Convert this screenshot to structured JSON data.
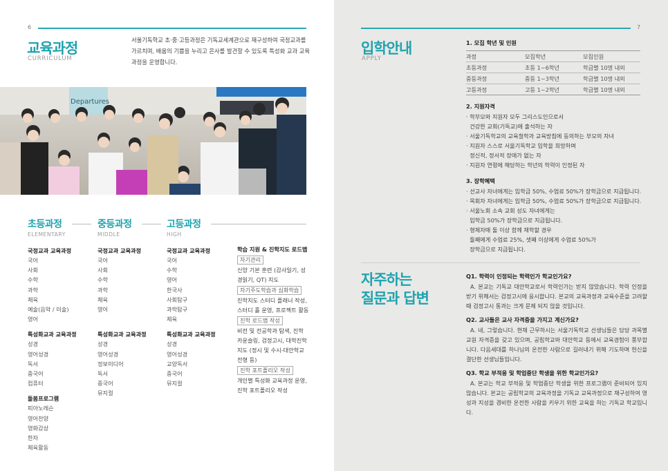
{
  "left_page": {
    "page_number": "6",
    "title": "교육과정",
    "subtitle": "CURRICULUM",
    "intro": "서울기독학교 초·중·고등과정은 기독교세계관으로 재구성하여 국정교과를 가르치며, 배움의 기쁨을 누리고 은사를 발견할 수 있도록 특성화 교과 교육과정을 운영합니다.",
    "photo_alt": "Departures",
    "columns": [
      {
        "title": "초등과정",
        "subtitle": "ELEMENTARY",
        "groups": [
          {
            "heading": "국정교과 교육과정",
            "items": [
              "국어",
              "사회",
              "수학",
              "과학",
              "체육",
              "예술(음악 / 미술)",
              "영어"
            ]
          },
          {
            "heading": "특성화교과 교육과정",
            "items": [
              "성경",
              "영어성경",
              "독서",
              "중국어",
              "컴퓨터"
            ]
          },
          {
            "heading": "돌봄프로그램",
            "items": [
              "피아노레슨",
              "영어찬양",
              "영화감상",
              "한자",
              "체육활동"
            ]
          }
        ]
      },
      {
        "title": "중등과정",
        "subtitle": "MIDDLE",
        "groups": [
          {
            "heading": "국정교과 교육과정",
            "items": [
              "국어",
              "사회",
              "수학",
              "과학",
              "체육",
              "영어"
            ]
          },
          {
            "heading": "특성화교과 교육과정",
            "items": [
              "성경",
              "영어성경",
              "정보미디어",
              "독서",
              "중국어",
              "뮤지컬"
            ]
          }
        ]
      },
      {
        "title": "고등과정",
        "subtitle": "HIGH",
        "groups": [
          {
            "heading": "국정교과 교육과정",
            "items": [
              "국어",
              "수학",
              "영어",
              "한국사",
              "사회탐구",
              "과학탐구",
              "체육"
            ]
          },
          {
            "heading": "특성화교과 교육과정",
            "items": [
              "성경",
              "영어성경",
              "교양독서",
              "중국어",
              "뮤지컬"
            ]
          }
        ]
      }
    ],
    "roadmap": {
      "heading": "학습 지원 & 진학지도 로드맵",
      "blocks": [
        {
          "tag": "자기관리",
          "lines": [
            "신앙 기본 훈련 (감사일기, 성",
            "경읽기, QT) 지도"
          ]
        },
        {
          "tag": "자기주도학습과 심화학습",
          "lines": [
            "진학지도 스터디 플래너 작성,",
            "스터디 홀 운영, 프로젝트 활동"
          ]
        },
        {
          "tag": "진학 로드맵 작성",
          "lines": [
            "비전 및 전공학과 탐색, 진학",
            "카운슬링, 검정고시, 대학진학",
            "지도 (정시 및 수시-대안학교",
            "전형 등)"
          ]
        },
        {
          "tag": "진학 포트폴리오 작성",
          "lines": [
            "개인별 특성화 교육과정 운영,",
            "진학 포트폴리오 작성"
          ]
        }
      ]
    }
  },
  "right_page": {
    "page_number": "7",
    "title": "입학안내",
    "subtitle": "APPLY",
    "section1": {
      "heading": "1. 모집 학년 및 인원",
      "headers": [
        "과정",
        "모집학년",
        "모집인원"
      ],
      "rows": [
        [
          "초등과정",
          "초등 1~6학년",
          "학급별 10명 내외"
        ],
        [
          "중등과정",
          "중등 1~3학년",
          "학급별 10명 내외"
        ],
        [
          "고등과정",
          "고등 1~2학년",
          "학급별 10명 내외"
        ]
      ]
    },
    "section2": {
      "heading": "2. 지원자격",
      "lines": [
        "· 학부모와 지원자 모두 그리스도인으로서",
        "  건강한 교회(기독교)에 출석하는 자",
        "· 서울기독학교의 교육철학과 교육방침에 동의하는 부모의 자녀",
        "· 지원자 스스로 서울기독학교 입학을 희망하며",
        "  정신적, 정서적 장애가 없는 자",
        "· 지원자 연령에 해당하는 학년의 학력이 인정된 자"
      ]
    },
    "section3": {
      "heading": "3. 장학혜택",
      "lines": [
        "· 선교사 자녀에게는 입학금 50%, 수업료 50%가 장학금으로 지급됩니다.",
        "· 목회자 자녀에게는 입학금 50%, 수업료 50%가 장학금으로 지급됩니다.",
        "· 서울노회 소속 교회 성도 자녀에게는",
        "  입학금 50%가 장학금으로 지급됩니다.",
        "· 형제자매 둘 이상 함께 재학할 경우",
        "  둘째에게 수업료 25%, 셋째 이상에게 수업료 50%가",
        "  장학금으로 지급됩니다."
      ]
    },
    "faq": {
      "title_line1": "자주하는",
      "title_line2": "질문과 답변",
      "items": [
        {
          "q": "Q1. 학력이 인정되는 학력인가 학교인가요?",
          "a": "A. 본교는 기독교 대안학교로서 학력인가는 받지 않았습니다. 학력 인정을 받기 위해서는 검정고시에 응시합니다. 본교의 교육과정과 교육수준을 고려할 때 검정고시 통과는 크게 문제 되지 않을 것입니다."
        },
        {
          "q": "Q2. 교사들은 교사 자격증을 가지고 계신가요?",
          "a": "A. 네, 그렇습니다. 현재 근무하시는 서울기독학교 선생님들은 담당 과목별 교원 자격증을 갖고 있으며, 공립학교와 대안학교 등에서 교육경험이 풍부합니다. 다음세대를 하나님의 온전한 사람으로 길러내기 위해 기도하며 헌신을 결단한 선생님들입니다."
        },
        {
          "q": "Q3. 학교 부적응 및 학업중단 학생을 위한 학교인가요?",
          "a": "A. 본교는 학교 부적응 및 학업중단 학생을 위한 프로그램이 준비되어 있지 않습니다. 본교는 공립학교의 교육과정을 기독교 교육과정으로 재구성하여 영성과 지성을 겸비한 온전한 사람을 키우기 위한 교육을 하는 기독교 학교입니다."
        }
      ]
    }
  },
  "colors": {
    "accent": "#1ea3ae",
    "right_bg": "#e9e9e7"
  }
}
